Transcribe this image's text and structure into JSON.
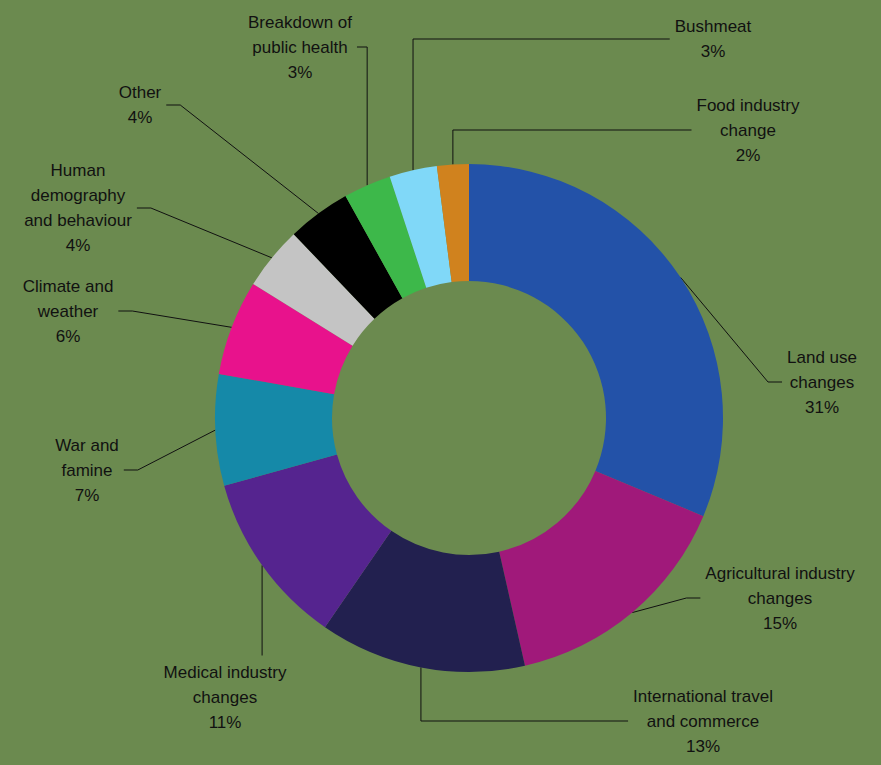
{
  "chart_data": {
    "type": "donut",
    "categories": [
      "Land use changes",
      "Agricultural industry changes",
      "International travel and commerce",
      "Medical industry changes",
      "War and famine",
      "Climate and weather",
      "Human demography and behaviour",
      "Other",
      "Breakdown of public health",
      "Bushmeat",
      "Food industry change"
    ],
    "values": [
      31,
      15,
      13,
      11,
      7,
      6,
      4,
      4,
      3,
      3,
      2
    ],
    "value_labels": [
      "31%",
      "15%",
      "13%",
      "11%",
      "7%",
      "6%",
      "4%",
      "4%",
      "3%",
      "3%",
      "2%"
    ],
    "colors": [
      "#2352a8",
      "#a0197a",
      "#22204f",
      "#55248f",
      "#1589a8",
      "#e8128c",
      "#c4c4c4",
      "#000000",
      "#3db84a",
      "#80d8f8",
      "#d0821e"
    ],
    "data_labels": true
  }
}
